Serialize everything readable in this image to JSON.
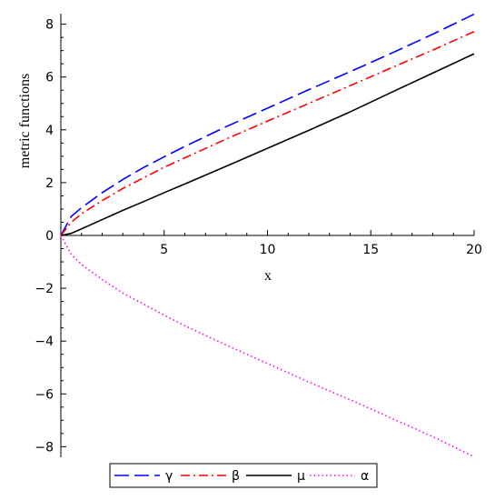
{
  "chart_data": {
    "type": "line",
    "xlabel": "x",
    "ylabel": "metric functions",
    "xlim": [
      0,
      20
    ],
    "ylim": [
      -8.4,
      8.4
    ],
    "x_ticks": [
      5,
      10,
      15,
      20
    ],
    "y_ticks": [
      -8,
      -6,
      -4,
      -2,
      0,
      2,
      4,
      6,
      8
    ],
    "grid": false,
    "legend_position": "bottom",
    "series": [
      {
        "name": "γ",
        "color": "#0000ff",
        "dash": "long-dash",
        "x": [
          0,
          0.5,
          1,
          2,
          3,
          4,
          5,
          6,
          8,
          10,
          12,
          14,
          16,
          18,
          20
        ],
        "y": [
          0,
          0.72,
          1.05,
          1.62,
          2.12,
          2.57,
          2.98,
          3.37,
          4.12,
          4.82,
          5.52,
          6.2,
          6.9,
          7.62,
          8.38
        ]
      },
      {
        "name": "β",
        "color": "#ff0000",
        "dash": "dash-dot",
        "x": [
          0,
          0.5,
          1,
          2,
          3,
          4,
          5,
          6,
          8,
          10,
          12,
          14,
          16,
          18,
          20
        ],
        "y": [
          0,
          0.5,
          0.82,
          1.32,
          1.78,
          2.18,
          2.58,
          2.94,
          3.65,
          4.33,
          5.0,
          5.67,
          6.35,
          7.02,
          7.72
        ]
      },
      {
        "name": "μ",
        "color": "#000000",
        "dash": "solid",
        "x": [
          0,
          0.5,
          1,
          2,
          3,
          4,
          5,
          6,
          8,
          10,
          12,
          14,
          16,
          18,
          20
        ],
        "y": [
          0,
          0.08,
          0.25,
          0.6,
          0.95,
          1.28,
          1.62,
          1.95,
          2.62,
          3.3,
          3.98,
          4.68,
          5.42,
          6.15,
          6.88
        ]
      },
      {
        "name": "α",
        "color": "#ff00ff",
        "dash": "dotted",
        "x": [
          0,
          0.5,
          1,
          2,
          3,
          4,
          5,
          6,
          8,
          10,
          12,
          14,
          16,
          18,
          20
        ],
        "y": [
          0,
          -0.72,
          -1.1,
          -1.67,
          -2.18,
          -2.6,
          -3.02,
          -3.42,
          -4.15,
          -4.85,
          -5.55,
          -6.22,
          -6.92,
          -7.62,
          -8.38
        ]
      }
    ]
  }
}
